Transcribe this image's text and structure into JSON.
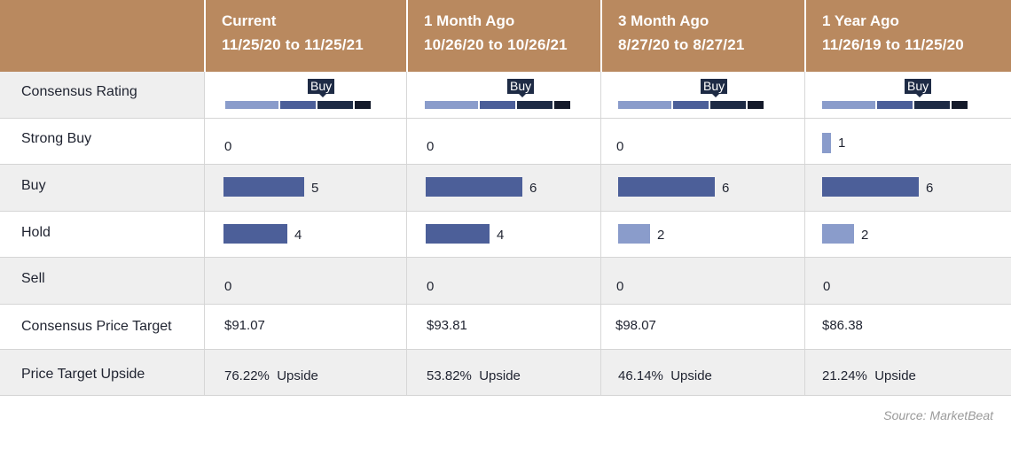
{
  "table": {
    "columns": [
      {
        "title": "Current",
        "range": "11/25/20 to 11/25/21"
      },
      {
        "title": "1 Month Ago",
        "range": "10/26/20 to 10/26/21"
      },
      {
        "title": "3 Month Ago",
        "range": "8/27/20 to 8/27/21"
      },
      {
        "title": "1 Year Ago",
        "range": "11/26/19 to 11/25/20"
      }
    ],
    "row_labels": {
      "consensus_rating": "Consensus Rating",
      "strong_buy": "Strong Buy",
      "buy": "Buy",
      "hold": "Hold",
      "sell": "Sell",
      "price_target": "Consensus Price Target",
      "upside": "Price Target Upside"
    },
    "consensus_badge": [
      "Buy",
      "Buy",
      "Buy",
      "Buy"
    ],
    "price_targets": [
      "$91.07",
      "$93.81",
      "$98.07",
      "$86.38"
    ],
    "upsides": [
      "76.22%  Upside",
      "53.82%  Upside",
      "46.14%  Upside",
      "21.24%  Upside"
    ]
  },
  "source": "Source: MarketBeat",
  "colors": {
    "header_bg": "#b9895f",
    "strong_buy": "#8a9ccb",
    "buy": "#4c5f99",
    "hold_current": "#4c5f99",
    "hold_light": "#8a9ccb",
    "scale": [
      "#8a9ccb",
      "#4c5f99",
      "#1e2b45",
      "#141a2a"
    ]
  },
  "chart_data": {
    "type": "bar",
    "categories": [
      "Current",
      "1 Month Ago",
      "3 Month Ago",
      "1 Year Ago"
    ],
    "series": [
      {
        "name": "Strong Buy",
        "values": [
          0,
          0,
          0,
          1
        ]
      },
      {
        "name": "Buy",
        "values": [
          5,
          6,
          6,
          6
        ]
      },
      {
        "name": "Hold",
        "values": [
          4,
          4,
          2,
          2
        ]
      },
      {
        "name": "Sell",
        "values": [
          0,
          0,
          0,
          0
        ]
      }
    ],
    "title": "",
    "xlabel": "",
    "ylabel": ""
  }
}
